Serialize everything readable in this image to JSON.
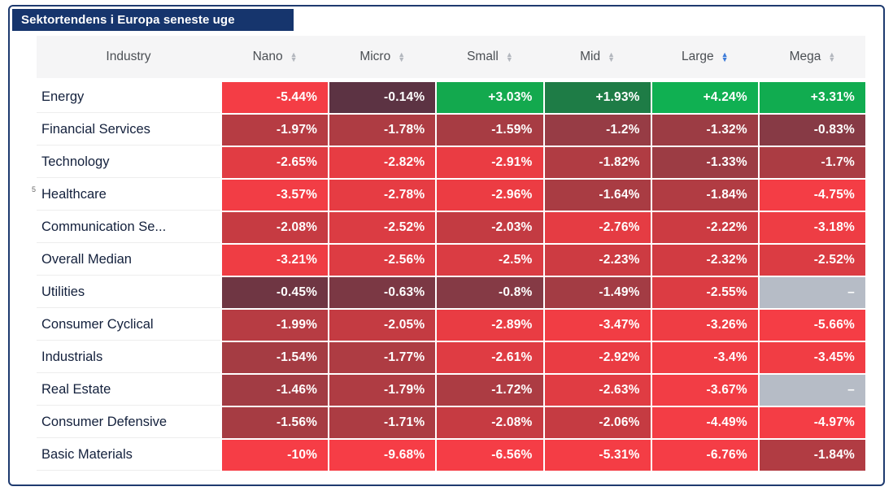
{
  "title": "Sektortendens i Europa seneste uge",
  "colors": {
    "frame_border": "#1e3a6f",
    "title_bar_bg": "#16356d",
    "header_bg": "#f5f5f6",
    "header_text": "#4b4f54",
    "row_label_text": "#13203c",
    "cell_text": "#ffffff",
    "sort_icon": "#b3b7be",
    "sort_icon_active": "#3c7bd9",
    "muted_cell_bg": "#b6bcc6"
  },
  "table": {
    "industry_header": "Industry",
    "footnote_marker": "5",
    "columns": [
      {
        "label": "Nano",
        "sort_active": false
      },
      {
        "label": "Micro",
        "sort_active": false
      },
      {
        "label": "Small",
        "sort_active": false
      },
      {
        "label": "Mid",
        "sort_active": false
      },
      {
        "label": "Large",
        "sort_active": true
      },
      {
        "label": "Mega",
        "sort_active": false
      }
    ],
    "rows": [
      {
        "industry": "Energy",
        "cells": [
          {
            "value": "-5.44%",
            "bg": "#f43d45"
          },
          {
            "value": "-0.14%",
            "bg": "#5c3343"
          },
          {
            "value": "+3.03%",
            "bg": "#13a94e"
          },
          {
            "value": "+1.93%",
            "bg": "#1e7c46"
          },
          {
            "value": "+4.24%",
            "bg": "#10b052"
          },
          {
            "value": "+3.31%",
            "bg": "#11ac50"
          }
        ]
      },
      {
        "industry": "Financial Services",
        "cells": [
          {
            "value": "-1.97%",
            "bg": "#b63c43"
          },
          {
            "value": "-1.78%",
            "bg": "#ae3c43"
          },
          {
            "value": "-1.59%",
            "bg": "#a73c43"
          },
          {
            "value": "-1.2%",
            "bg": "#973c45"
          },
          {
            "value": "-1.32%",
            "bg": "#9c3c44"
          },
          {
            "value": "-0.83%",
            "bg": "#873a45"
          }
        ]
      },
      {
        "industry": "Technology",
        "cells": [
          {
            "value": "-2.65%",
            "bg": "#e13c43"
          },
          {
            "value": "-2.82%",
            "bg": "#e73c43"
          },
          {
            "value": "-2.91%",
            "bg": "#ea3c43"
          },
          {
            "value": "-1.82%",
            "bg": "#b03c43"
          },
          {
            "value": "-1.33%",
            "bg": "#9c3c44"
          },
          {
            "value": "-1.7%",
            "bg": "#ab3c43"
          }
        ]
      },
      {
        "industry": "Healthcare",
        "cells": [
          {
            "value": "-3.57%",
            "bg": "#f23d45"
          },
          {
            "value": "-2.78%",
            "bg": "#e63c43"
          },
          {
            "value": "-2.96%",
            "bg": "#ec3c43"
          },
          {
            "value": "-1.64%",
            "bg": "#a93c43"
          },
          {
            "value": "-1.84%",
            "bg": "#b13c43"
          },
          {
            "value": "-4.75%",
            "bg": "#f43d45"
          }
        ]
      },
      {
        "industry": "Communication Se...",
        "cells": [
          {
            "value": "-2.08%",
            "bg": "#c63b42"
          },
          {
            "value": "-2.52%",
            "bg": "#db3c43"
          },
          {
            "value": "-2.03%",
            "bg": "#c33b42"
          },
          {
            "value": "-2.76%",
            "bg": "#e53c43"
          },
          {
            "value": "-2.22%",
            "bg": "#cc3b42"
          },
          {
            "value": "-3.18%",
            "bg": "#ee3d44"
          }
        ]
      },
      {
        "industry": "Overall Median",
        "cells": [
          {
            "value": "-3.21%",
            "bg": "#ef3d44"
          },
          {
            "value": "-2.56%",
            "bg": "#dd3c43"
          },
          {
            "value": "-2.5%",
            "bg": "#da3c43"
          },
          {
            "value": "-2.23%",
            "bg": "#cd3b42"
          },
          {
            "value": "-2.32%",
            "bg": "#d13b42"
          },
          {
            "value": "-2.52%",
            "bg": "#db3c43"
          }
        ]
      },
      {
        "industry": "Utilities",
        "cells": [
          {
            "value": "-0.45%",
            "bg": "#6f3643"
          },
          {
            "value": "-0.63%",
            "bg": "#7b3844"
          },
          {
            "value": "-0.8%",
            "bg": "#853a45"
          },
          {
            "value": "-1.49%",
            "bg": "#a33c44"
          },
          {
            "value": "-2.55%",
            "bg": "#dc3c43"
          },
          {
            "value": "–",
            "bg": "#b6bcc6",
            "muted": true
          }
        ]
      },
      {
        "industry": "Consumer Cyclical",
        "cells": [
          {
            "value": "-1.99%",
            "bg": "#b73c43"
          },
          {
            "value": "-2.05%",
            "bg": "#c43b42"
          },
          {
            "value": "-2.89%",
            "bg": "#e93c43"
          },
          {
            "value": "-3.47%",
            "bg": "#f13d44"
          },
          {
            "value": "-3.26%",
            "bg": "#ef3d44"
          },
          {
            "value": "-5.66%",
            "bg": "#f53d45"
          }
        ]
      },
      {
        "industry": "Industrials",
        "cells": [
          {
            "value": "-1.54%",
            "bg": "#a53c43"
          },
          {
            "value": "-1.77%",
            "bg": "#ae3c43"
          },
          {
            "value": "-2.61%",
            "bg": "#df3c43"
          },
          {
            "value": "-2.92%",
            "bg": "#ea3c43"
          },
          {
            "value": "-3.4%",
            "bg": "#f03d44"
          },
          {
            "value": "-3.45%",
            "bg": "#f13d44"
          }
        ]
      },
      {
        "industry": "Real Estate",
        "cells": [
          {
            "value": "-1.46%",
            "bg": "#a23c44"
          },
          {
            "value": "-1.79%",
            "bg": "#af3c43"
          },
          {
            "value": "-1.72%",
            "bg": "#ac3c43"
          },
          {
            "value": "-2.63%",
            "bg": "#e03c43"
          },
          {
            "value": "-3.67%",
            "bg": "#f23d45"
          },
          {
            "value": "–",
            "bg": "#b6bcc6",
            "muted": true
          }
        ]
      },
      {
        "industry": "Consumer Defensive",
        "cells": [
          {
            "value": "-1.56%",
            "bg": "#a63c43"
          },
          {
            "value": "-1.71%",
            "bg": "#ac3c43"
          },
          {
            "value": "-2.08%",
            "bg": "#c63b42"
          },
          {
            "value": "-2.06%",
            "bg": "#c53b42"
          },
          {
            "value": "-4.49%",
            "bg": "#f33d45"
          },
          {
            "value": "-4.97%",
            "bg": "#f43d45"
          }
        ]
      },
      {
        "industry": "Basic Materials",
        "cells": [
          {
            "value": "-10%",
            "bg": "#f63d46"
          },
          {
            "value": "-9.68%",
            "bg": "#f63d46"
          },
          {
            "value": "-6.56%",
            "bg": "#f53d46"
          },
          {
            "value": "-5.31%",
            "bg": "#f43d45"
          },
          {
            "value": "-6.76%",
            "bg": "#f53d46"
          },
          {
            "value": "-1.84%",
            "bg": "#b13c43"
          }
        ]
      }
    ]
  },
  "chart_data": {
    "type": "heatmap",
    "title": "Sektortendens i Europa seneste uge",
    "x_categories": [
      "Nano",
      "Micro",
      "Small",
      "Mid",
      "Large",
      "Mega"
    ],
    "y_categories": [
      "Energy",
      "Financial Services",
      "Technology",
      "Healthcare",
      "Communication Se...",
      "Overall Median",
      "Utilities",
      "Consumer Cyclical",
      "Industrials",
      "Real Estate",
      "Consumer Defensive",
      "Basic Materials"
    ],
    "values_pct": [
      [
        -5.44,
        -0.14,
        3.03,
        1.93,
        4.24,
        3.31
      ],
      [
        -1.97,
        -1.78,
        -1.59,
        -1.2,
        -1.32,
        -0.83
      ],
      [
        -2.65,
        -2.82,
        -2.91,
        -1.82,
        -1.33,
        -1.7
      ],
      [
        -3.57,
        -2.78,
        -2.96,
        -1.64,
        -1.84,
        -4.75
      ],
      [
        -2.08,
        -2.52,
        -2.03,
        -2.76,
        -2.22,
        -3.18
      ],
      [
        -3.21,
        -2.56,
        -2.5,
        -2.23,
        -2.32,
        -2.52
      ],
      [
        -0.45,
        -0.63,
        -0.8,
        -1.49,
        -2.55,
        null
      ],
      [
        -1.99,
        -2.05,
        -2.89,
        -3.47,
        -3.26,
        -5.66
      ],
      [
        -1.54,
        -1.77,
        -2.61,
        -2.92,
        -3.4,
        -3.45
      ],
      [
        -1.46,
        -1.79,
        -1.72,
        -2.63,
        -3.67,
        null
      ],
      [
        -1.56,
        -1.71,
        -2.08,
        -2.06,
        -4.49,
        -4.97
      ],
      [
        -10,
        -9.68,
        -6.56,
        -5.31,
        -6.76,
        -1.84
      ]
    ],
    "color_scale": "dark maroon near 0, bright red for large negatives, green for positives, gray for missing",
    "sorted_by": "Large"
  }
}
